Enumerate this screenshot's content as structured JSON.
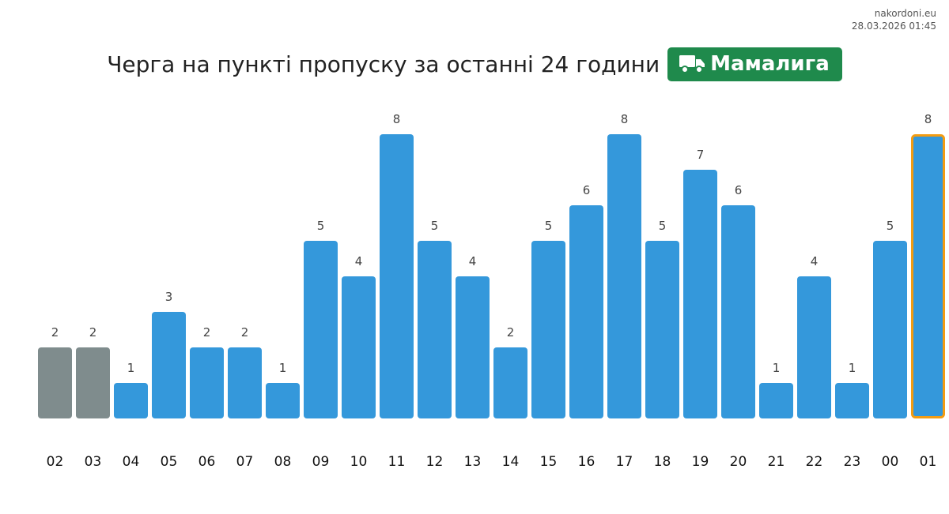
{
  "site": {
    "name": "nakordoni.eu",
    "timestamp": "28.03.2026 01:45"
  },
  "header": {
    "title": "Черга на пункті пропуску за останні 24 години",
    "checkpoint": "Мамалига",
    "badge_icon": "truck-icon"
  },
  "colors": {
    "past": "#7f8c8d",
    "current": "#3498db",
    "highlight": "#f39c12",
    "badge": "#1f8a4c"
  },
  "chart_data": {
    "type": "bar",
    "title": "Черга на пункті пропуску за останні 24 години",
    "xlabel": "",
    "ylabel": "",
    "categories": [
      "02",
      "03",
      "04",
      "05",
      "06",
      "07",
      "08",
      "09",
      "10",
      "11",
      "12",
      "13",
      "14",
      "15",
      "16",
      "17",
      "18",
      "19",
      "20",
      "21",
      "22",
      "23",
      "00",
      "01"
    ],
    "values": [
      2,
      2,
      1,
      3,
      2,
      2,
      1,
      5,
      4,
      8,
      5,
      4,
      2,
      5,
      6,
      8,
      5,
      7,
      6,
      1,
      4,
      1,
      5,
      8
    ],
    "grey_bars": [
      "02",
      "03"
    ],
    "highlighted_bar": "01",
    "ylim": [
      0,
      8
    ],
    "grid": false,
    "legend": "none"
  }
}
